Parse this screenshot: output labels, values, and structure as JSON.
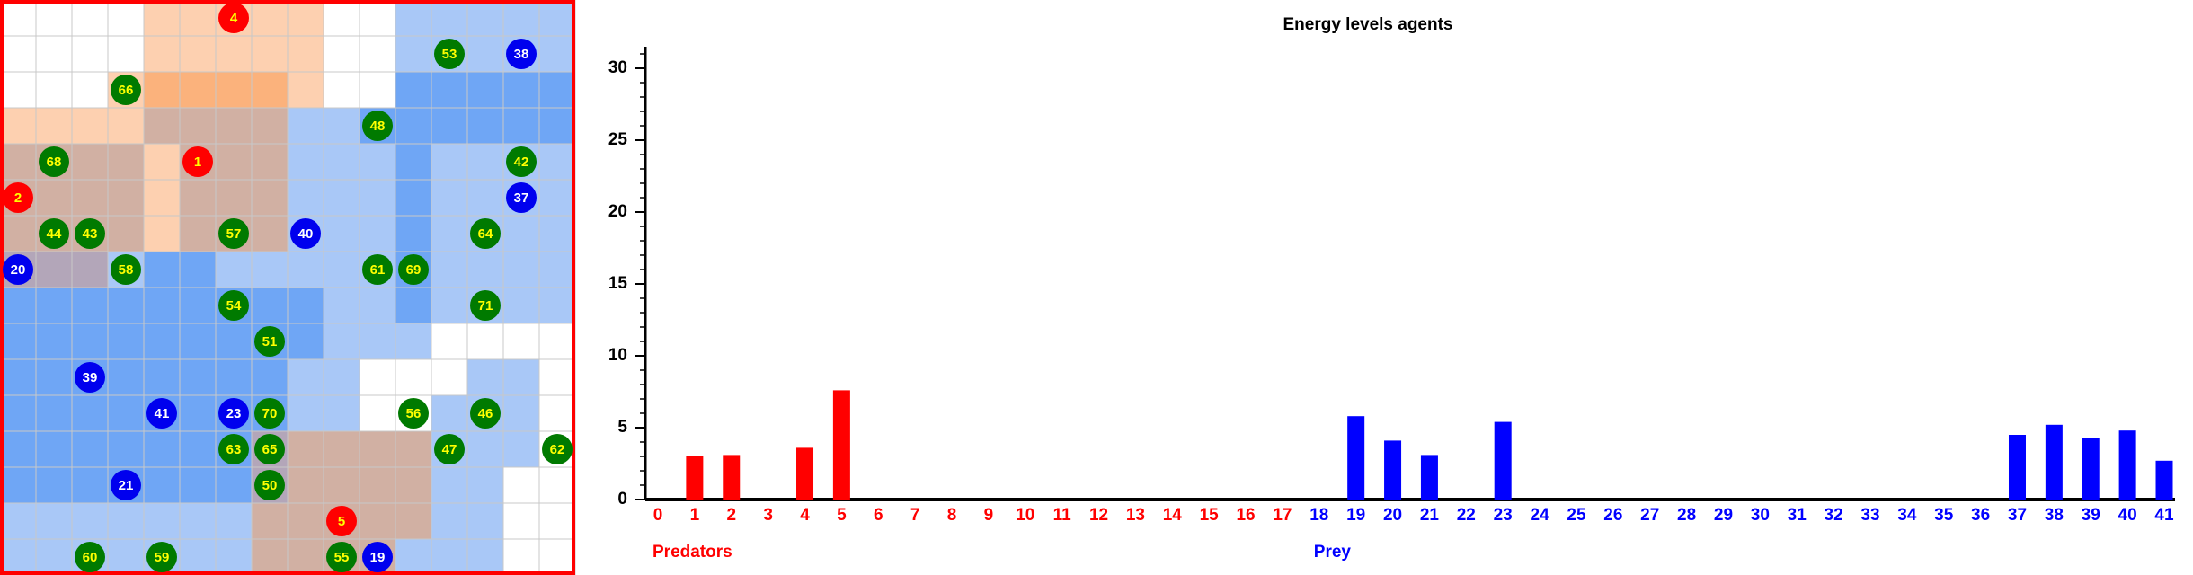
{
  "grid": {
    "size": 16,
    "palette": {
      "w": "#ffffff",
      "o": "#fdd0b0",
      "O": "#fbb27c",
      "b": "#a9c8f7",
      "B": "#6fa6f5",
      "m": "#d1b0a3",
      "g": "#b3a6b9"
    },
    "cells": [
      "wwwwooooowwbbbbb",
      "wwwwooooowwbbbbb",
      "wwwoOOOOowwBBBBB",
      "oooommmmbbBBBBBB",
      "mmmmommmbbbBbbbb",
      "mmmmommmbbbBbbbb",
      "mmmmommmbbbBbbbb",
      "gggbBBbbbbbBbbbb",
      "BBBBBBBBBbbBbbbb",
      "BBBBBBBBBbbbwwww",
      "BBBBBBBBbbwwwbbw",
      "BBBBBBBBbbwwbbbw",
      "BBBBBBBgmmmmbbbw",
      "BBBBBBBgmmmmbbww",
      "bbbbbbbmmmmmbbww",
      "bbbbbbbmmmmbbbww"
    ],
    "agent_types": {
      "predator": {
        "color": "#ff0000",
        "text_color": "#ffff00"
      },
      "prey": {
        "color": "#0000ee",
        "text_color": "#ffffff"
      },
      "food": {
        "color": "#007a00",
        "text_color": "#ffff00"
      }
    },
    "agents": [
      {
        "id": 4,
        "col": 6,
        "row": 0,
        "type": "predator"
      },
      {
        "id": 53,
        "col": 12,
        "row": 1,
        "type": "food"
      },
      {
        "id": 38,
        "col": 14,
        "row": 1,
        "type": "prey"
      },
      {
        "id": 66,
        "col": 3,
        "row": 2,
        "type": "food"
      },
      {
        "id": 48,
        "col": 10,
        "row": 3,
        "type": "food"
      },
      {
        "id": 68,
        "col": 1,
        "row": 4,
        "type": "food"
      },
      {
        "id": 1,
        "col": 5,
        "row": 4,
        "type": "predator"
      },
      {
        "id": 42,
        "col": 14,
        "row": 4,
        "type": "food"
      },
      {
        "id": 2,
        "col": 0,
        "row": 5,
        "type": "predator"
      },
      {
        "id": 37,
        "col": 14,
        "row": 5,
        "type": "prey"
      },
      {
        "id": 44,
        "col": 1,
        "row": 6,
        "type": "food"
      },
      {
        "id": 43,
        "col": 2,
        "row": 6,
        "type": "food"
      },
      {
        "id": 57,
        "col": 6,
        "row": 6,
        "type": "food"
      },
      {
        "id": 40,
        "col": 8,
        "row": 6,
        "type": "prey"
      },
      {
        "id": 64,
        "col": 13,
        "row": 6,
        "type": "food"
      },
      {
        "id": 20,
        "col": 0,
        "row": 7,
        "type": "prey"
      },
      {
        "id": 58,
        "col": 3,
        "row": 7,
        "type": "food"
      },
      {
        "id": 61,
        "col": 10,
        "row": 7,
        "type": "food"
      },
      {
        "id": 69,
        "col": 11,
        "row": 7,
        "type": "food"
      },
      {
        "id": 54,
        "col": 6,
        "row": 8,
        "type": "food"
      },
      {
        "id": 71,
        "col": 13,
        "row": 8,
        "type": "food"
      },
      {
        "id": 51,
        "col": 7,
        "row": 9,
        "type": "food"
      },
      {
        "id": 39,
        "col": 2,
        "row": 10,
        "type": "prey"
      },
      {
        "id": 41,
        "col": 4,
        "row": 11,
        "type": "prey"
      },
      {
        "id": 23,
        "col": 6,
        "row": 11,
        "type": "prey"
      },
      {
        "id": 70,
        "col": 7,
        "row": 11,
        "type": "food"
      },
      {
        "id": 56,
        "col": 11,
        "row": 11,
        "type": "food"
      },
      {
        "id": 46,
        "col": 13,
        "row": 11,
        "type": "food"
      },
      {
        "id": 63,
        "col": 6,
        "row": 12,
        "type": "food"
      },
      {
        "id": 65,
        "col": 7,
        "row": 12,
        "type": "food"
      },
      {
        "id": 47,
        "col": 12,
        "row": 12,
        "type": "food"
      },
      {
        "id": 62,
        "col": 15,
        "row": 12,
        "type": "food"
      },
      {
        "id": 21,
        "col": 3,
        "row": 13,
        "type": "prey"
      },
      {
        "id": 50,
        "col": 7,
        "row": 13,
        "type": "food"
      },
      {
        "id": 5,
        "col": 9,
        "row": 14,
        "type": "predator"
      },
      {
        "id": 60,
        "col": 2,
        "row": 15,
        "type": "food"
      },
      {
        "id": 59,
        "col": 4,
        "row": 15,
        "type": "food"
      },
      {
        "id": 55,
        "col": 9,
        "row": 15,
        "type": "food"
      },
      {
        "id": 19,
        "col": 10,
        "row": 15,
        "type": "prey"
      }
    ]
  },
  "chart_data": {
    "type": "bar",
    "title": "Energy levels agents",
    "categories": [
      0,
      1,
      2,
      3,
      4,
      5,
      6,
      7,
      8,
      9,
      10,
      11,
      12,
      13,
      14,
      15,
      16,
      17,
      18,
      19,
      20,
      21,
      22,
      23,
      24,
      25,
      26,
      27,
      28,
      29,
      30,
      31,
      32,
      33,
      34,
      35,
      36,
      37,
      38,
      39,
      40,
      41
    ],
    "series": [
      {
        "name": "Predators",
        "color": "#ff0000",
        "values": [
          0,
          3.0,
          3.1,
          0,
          3.6,
          7.6,
          0,
          0,
          0,
          0,
          0,
          0,
          0,
          0,
          0,
          0,
          0,
          0,
          null,
          null,
          null,
          null,
          null,
          null,
          null,
          null,
          null,
          null,
          null,
          null,
          null,
          null,
          null,
          null,
          null,
          null,
          null,
          null,
          null,
          null,
          null,
          null
        ]
      },
      {
        "name": "Prey",
        "color": "#0000ff",
        "values": [
          null,
          null,
          null,
          null,
          null,
          null,
          null,
          null,
          null,
          null,
          null,
          null,
          null,
          null,
          null,
          null,
          null,
          null,
          0,
          5.8,
          4.1,
          3.1,
          0,
          5.4,
          0,
          0,
          0,
          0,
          0,
          0,
          0,
          0,
          0,
          0,
          0,
          0,
          0,
          4.5,
          5.2,
          4.3,
          4.8,
          2.7
        ]
      }
    ],
    "ylim": [
      0,
      31
    ],
    "yticks": [
      0,
      5,
      10,
      15,
      20,
      25,
      30
    ],
    "minor_tick_step": 1
  }
}
